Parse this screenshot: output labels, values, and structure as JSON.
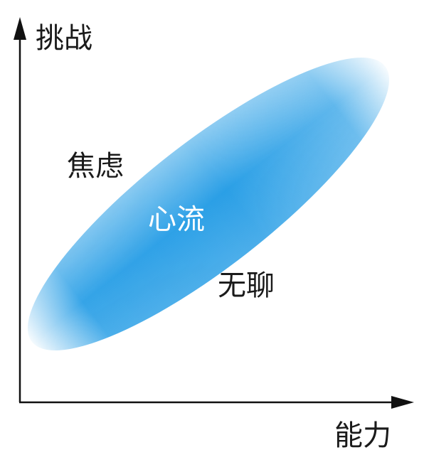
{
  "axes": {
    "y_label": "挑战",
    "x_label": "能力"
  },
  "zones": {
    "anxiety": "焦虑",
    "flow": "心流",
    "boredom": "无聊"
  },
  "colors": {
    "axis": "#111111",
    "flow_band": "#2a9fe6",
    "flow_text": "#ffffff",
    "text": "#1a1a1a"
  }
}
